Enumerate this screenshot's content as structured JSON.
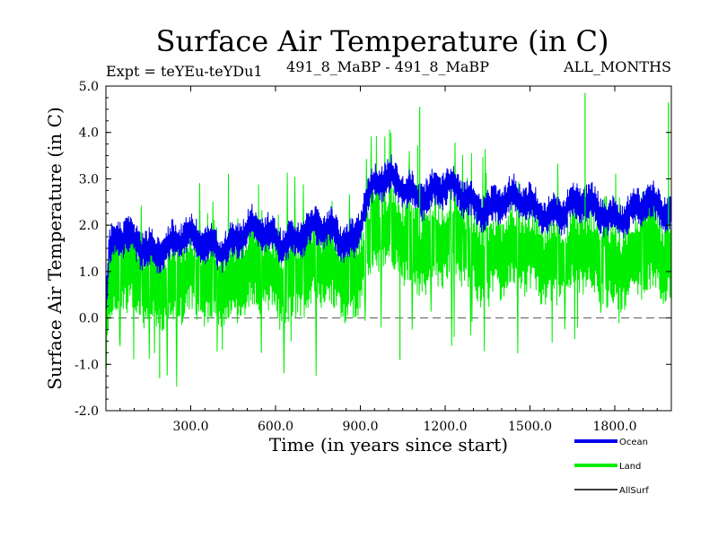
{
  "chart_data": {
    "type": "line",
    "title": "Surface Air Temperature (in C)",
    "subtitle_left": "Expt = teYEu-teYDu1",
    "subtitle_center": "491_8_MaBP - 491_8_MaBP",
    "subtitle_right": "ALL_MONTHS",
    "xlabel": "Time (in years since start)",
    "ylabel": "Surface Air Temperature (in C)",
    "xlim": [
      0,
      2000
    ],
    "ylim": [
      -2.0,
      5.0
    ],
    "x_ticks": [
      300,
      600,
      900,
      1200,
      1500,
      1800
    ],
    "x_tick_labels": [
      "300.0",
      "600.0",
      "900.0",
      "1200.0",
      "1500.0",
      "1800.0"
    ],
    "y_ticks": [
      -2,
      -1,
      0,
      1,
      2,
      3,
      4,
      5
    ],
    "y_tick_labels": [
      "-2.0",
      "-1.0",
      "0.0",
      "1.0",
      "2.0",
      "3.0",
      "4.0",
      "5.0"
    ],
    "reference_line": {
      "y": 0.0,
      "style": "dashed"
    },
    "series": [
      {
        "name": "Ocean",
        "color": "#0000ee",
        "x": [
          0,
          10,
          30,
          100,
          200,
          300,
          400,
          500,
          600,
          700,
          800,
          880,
          920,
          960,
          1000,
          1050,
          1100,
          1150,
          1200,
          1300,
          1400,
          1500,
          1600,
          1700,
          1800,
          1900,
          2000
        ],
        "mean": [
          0.2,
          1.3,
          1.6,
          1.6,
          1.6,
          1.6,
          1.65,
          1.75,
          1.8,
          1.8,
          1.8,
          1.8,
          2.6,
          2.8,
          2.85,
          2.85,
          2.8,
          2.75,
          2.7,
          2.55,
          2.45,
          2.4,
          2.35,
          2.35,
          2.3,
          2.3,
          2.3
        ],
        "spread": 0.42
      },
      {
        "name": "Land",
        "color": "#00ee00",
        "x": [
          0,
          10,
          30,
          100,
          200,
          300,
          400,
          500,
          600,
          700,
          800,
          880,
          920,
          960,
          1000,
          1050,
          1100,
          1150,
          1200,
          1300,
          1400,
          1500,
          1600,
          1700,
          1800,
          1900,
          2000
        ],
        "mean": [
          -0.6,
          0.6,
          0.85,
          0.85,
          0.8,
          0.75,
          0.8,
          0.9,
          0.95,
          1.0,
          1.0,
          1.0,
          1.6,
          1.75,
          1.8,
          1.75,
          1.65,
          1.6,
          1.55,
          1.45,
          1.4,
          1.35,
          1.3,
          1.3,
          1.3,
          1.3,
          1.3
        ],
        "spread": 0.95,
        "peak_max": 4.85
      },
      {
        "name": "AllSurf",
        "color": "#000000"
      }
    ],
    "legend": [
      "Ocean",
      "Land",
      "AllSurf"
    ],
    "legend_position": "bottom-right"
  }
}
